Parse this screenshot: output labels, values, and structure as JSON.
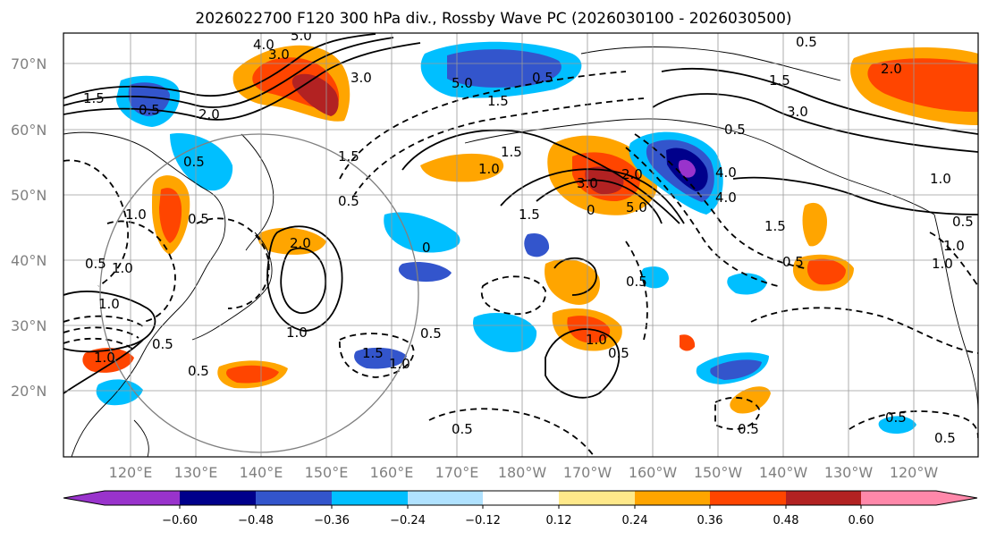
{
  "title": "2026022700 F120 300 hPa div., Rossby Wave PC (2026030100 - 2026030500)",
  "lat_labels": [
    "70°N",
    "60°N",
    "50°N",
    "40°N",
    "30°N",
    "20°N"
  ],
  "lon_labels": [
    "120°E",
    "130°E",
    "140°E",
    "150°E",
    "160°E",
    "170°E",
    "180°W",
    "170°W",
    "160°W",
    "150°W",
    "140°W",
    "130°W",
    "120°W"
  ],
  "colorbar": {
    "tick_labels": [
      "−0.60",
      "−0.48",
      "−0.36",
      "−0.24",
      "−0.12",
      "0.12",
      "0.24",
      "0.36",
      "0.48",
      "0.60"
    ],
    "colors": [
      "#9933cc",
      "#00008b",
      "#3355cc",
      "#00bfff",
      "#b0e2ff",
      "#ffffff",
      "#ffe98a",
      "#ffa500",
      "#ff4500",
      "#b22222",
      "#ff88aa"
    ]
  },
  "contour_labels": [
    "5.0",
    "4.0",
    "3.0",
    "3.0",
    "1.5",
    "0.5",
    "2.0",
    "5.0",
    "1.5",
    "0.5",
    "3.0",
    "1.5",
    "1.0",
    "2.0",
    "1.5",
    "1.0",
    "1.5",
    "1.0",
    "0.5",
    "3.0",
    "2.0",
    "5.0",
    "4.0",
    "1.5",
    "0",
    "2.0",
    "0.5",
    "1.5",
    "0.5",
    "0",
    "1.0",
    "1.0",
    "0.5",
    "1.0",
    "0.5",
    "0.5",
    "1.0",
    "1.5",
    "0.5",
    "1.0",
    "0.5",
    "1.0",
    "0.5",
    "1.0",
    "0.5",
    "0.5",
    "0.5",
    "0.5",
    "0.5",
    "1.0",
    "0.5",
    "4.0",
    "0.5",
    "0.5"
  ]
}
